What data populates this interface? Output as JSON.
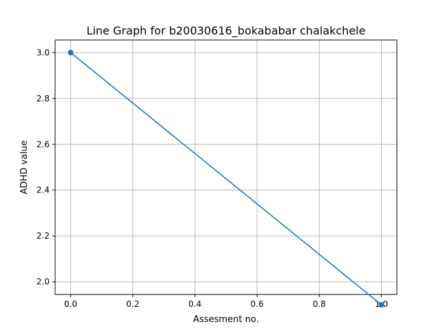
{
  "chart_data": {
    "type": "line",
    "title": "Line Graph for b20030616_bokababar chalakchele",
    "xlabel": "Assesment no.",
    "ylabel": "ADHD value",
    "xlim": [
      -0.05,
      1.05
    ],
    "ylim": [
      1.945,
      3.055
    ],
    "xticks": [
      0.0,
      0.2,
      0.4,
      0.6,
      0.8,
      1.0
    ],
    "xtick_labels": [
      "0.0",
      "0.2",
      "0.4",
      "0.6",
      "0.8",
      "1.0"
    ],
    "yticks": [
      2.0,
      2.2,
      2.4,
      2.6,
      2.8,
      3.0
    ],
    "ytick_labels": [
      "2.0",
      "2.2",
      "2.4",
      "2.6",
      "2.8",
      "3.0"
    ],
    "grid": true,
    "series": [
      {
        "x": [
          0,
          1
        ],
        "y": [
          3.0,
          1.9
        ],
        "color": "#1f77b4",
        "marker": "circle"
      }
    ]
  }
}
